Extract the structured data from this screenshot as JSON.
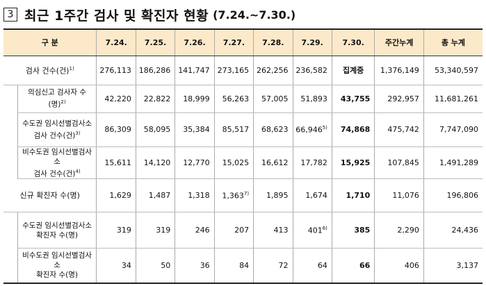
{
  "title": {
    "number": "3",
    "text": "최근 1주간 검사 및 확진자 현황",
    "period": "(7.24.~7.30.)"
  },
  "table": {
    "header": {
      "category": "구 분",
      "dates": [
        "7.24.",
        "7.25.",
        "7.26.",
        "7.27.",
        "7.28.",
        "7.29.",
        "7.30."
      ],
      "weekly_total": "주간누계",
      "grand_total": "총 누계"
    },
    "rows": [
      {
        "label": "검사 건수(건)",
        "label_sup": "1)",
        "values": [
          "276,113",
          "186,286",
          "141,747",
          "273,165",
          "262,256",
          "236,582",
          "집계중"
        ],
        "weekly": "1,376,149",
        "total": "53,340,597"
      },
      {
        "label": "의심신고 검사자 수(명)",
        "label_sup": "2)",
        "values": [
          "42,220",
          "22,822",
          "18,999",
          "56,263",
          "57,005",
          "51,893",
          "43,755"
        ],
        "weekly": "292,957",
        "total": "11,681,261"
      },
      {
        "label_line1": "수도권 임시선별검사소",
        "label_line2": "검사 건수(건)",
        "label_sup": "3)",
        "values": [
          "86,309",
          "58,095",
          "35,384",
          "85,517",
          "68,623",
          "66,946",
          "74,868"
        ],
        "value_sup_index5": "5)",
        "weekly": "475,742",
        "total": "7,747,090"
      },
      {
        "label_line1": "비수도권 임시선별검사소",
        "label_line2": "검사 건수(건)",
        "label_sup": "4)",
        "values": [
          "15,611",
          "14,120",
          "12,770",
          "15,025",
          "16,612",
          "17,782",
          "15,925"
        ],
        "weekly": "107,845",
        "total": "1,491,289"
      },
      {
        "label": "신규 확진자 수(명)",
        "values": [
          "1,629",
          "1,487",
          "1,318",
          "1,363",
          "1,895",
          "1,674",
          "1,710"
        ],
        "value_sup_index3": "7)",
        "weekly": "11,076",
        "total": "196,806"
      },
      {
        "label_line1": "수도권 임시선별검사소",
        "label_line2": "확진자 수(명)",
        "values": [
          "319",
          "319",
          "246",
          "207",
          "413",
          "401",
          "385"
        ],
        "value_sup_index5": "6)",
        "weekly": "2,290",
        "total": "24,436"
      },
      {
        "label_line1": "비수도권 임시선별검사소",
        "label_line2": "확진자 수(명)",
        "values": [
          "34",
          "50",
          "36",
          "84",
          "72",
          "64",
          "66"
        ],
        "weekly": "406",
        "total": "3,137"
      }
    ]
  }
}
